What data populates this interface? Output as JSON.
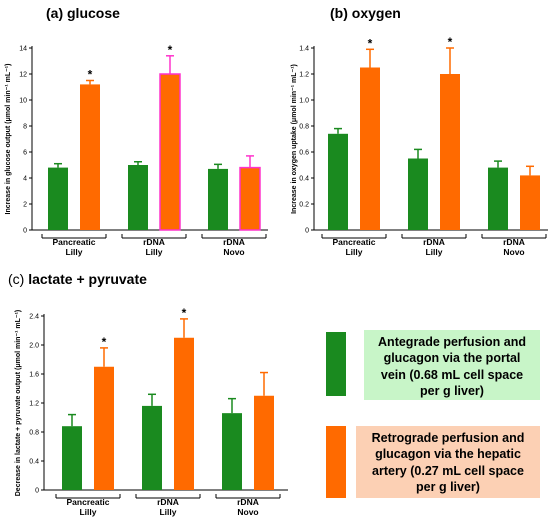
{
  "colors": {
    "green": "#1a8a1f",
    "orange": "#ff6a00",
    "magenta": "#ff33cc",
    "legend_green_bg": "#c8f5c8",
    "legend_orange_bg": "#fcd0b4"
  },
  "legend": [
    {
      "text": "Antegrade perfusion and glucagon via the portal vein (0.68 mL cell space per g liver)",
      "color": "#1a8a1f"
    },
    {
      "text": "Retrograde perfusion and glucagon via the hepatic artery (0.27 mL cell space per g liver)",
      "color": "#ff6a00"
    }
  ],
  "chart_data": [
    {
      "type": "bar",
      "title": "(a) glucose",
      "ylabel": "Increase in glucose output (μmol min⁻¹ mL⁻¹)",
      "ylim": [
        0,
        14
      ],
      "yticks": [
        0,
        2,
        4,
        6,
        8,
        10,
        12,
        14
      ],
      "categories": [
        [
          "Pancreatic",
          "Lilly"
        ],
        [
          "rDNA",
          "Lilly"
        ],
        [
          "rDNA",
          "Novo"
        ]
      ],
      "series": [
        {
          "values": [
            4.8,
            5.0,
            4.7
          ],
          "errors": [
            0.3,
            0.25,
            0.35
          ]
        },
        {
          "values": [
            11.2,
            12.0,
            4.8
          ],
          "errors": [
            0.3,
            1.4,
            0.9
          ]
        }
      ],
      "significant": [
        [
          false,
          false,
          false
        ],
        [
          true,
          true,
          false
        ]
      ]
    },
    {
      "type": "bar",
      "title": "(b) oxygen",
      "ylabel": "Increase in oxygen uptake (μmol min⁻¹ mL⁻¹)",
      "ylim": [
        0,
        1.4
      ],
      "yticks": [
        0,
        0.2,
        0.4,
        0.6,
        0.8,
        1.0,
        1.2,
        1.4
      ],
      "categories": [
        [
          "Pancreatic",
          "Lilly"
        ],
        [
          "rDNA",
          "Lilly"
        ],
        [
          "rDNA",
          "Novo"
        ]
      ],
      "series": [
        {
          "values": [
            0.74,
            0.55,
            0.48
          ],
          "errors": [
            0.04,
            0.07,
            0.05
          ]
        },
        {
          "values": [
            1.25,
            1.2,
            0.42
          ],
          "errors": [
            0.14,
            0.2,
            0.07
          ]
        }
      ],
      "significant": [
        [
          false,
          false,
          false
        ],
        [
          true,
          true,
          false
        ]
      ]
    },
    {
      "type": "bar",
      "title": "(c) lactate + pyruvate",
      "ylabel": "Decrease in lactate + pyruvate output (μmol min⁻¹ mL⁻¹)",
      "ylim": [
        0,
        2.4
      ],
      "yticks": [
        0,
        0.4,
        0.8,
        1.2,
        1.6,
        2.0,
        2.4
      ],
      "categories": [
        [
          "Pancreatic",
          "Lilly"
        ],
        [
          "rDNA",
          "Lilly"
        ],
        [
          "rDNA",
          "Novo"
        ]
      ],
      "series": [
        {
          "values": [
            0.88,
            1.16,
            1.06
          ],
          "errors": [
            0.16,
            0.16,
            0.2
          ]
        },
        {
          "values": [
            1.7,
            2.1,
            1.3
          ],
          "errors": [
            0.26,
            0.26,
            0.32
          ]
        }
      ],
      "significant": [
        [
          false,
          false,
          false
        ],
        [
          true,
          true,
          false
        ]
      ]
    }
  ]
}
